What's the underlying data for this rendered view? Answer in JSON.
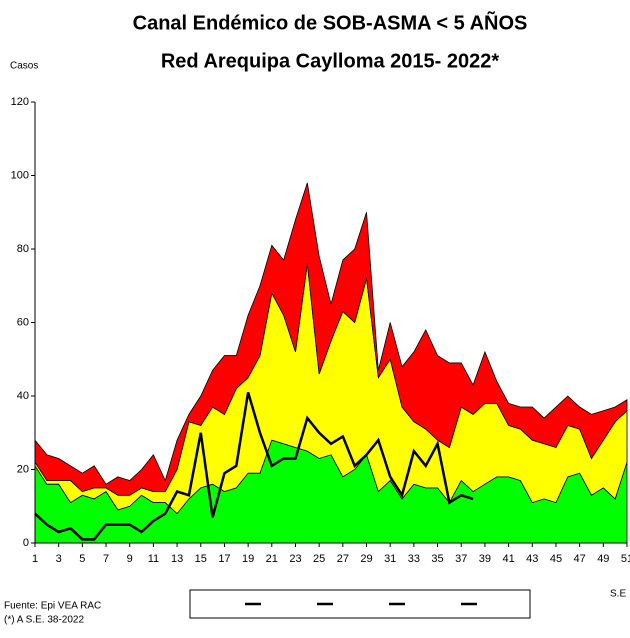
{
  "chart_data": {
    "type": "area",
    "title": [
      "Canal Endémico de SOB-ASMA < 5 AÑOS",
      "Red Arequipa Caylloma 2015- 2022*"
    ],
    "ylabel": "Casos",
    "xlabel": "S.E",
    "notes": [
      "Fuente: Epi VEA RAC",
      "(*) A S.E. 38-2022"
    ],
    "x": [
      1,
      2,
      3,
      4,
      5,
      6,
      7,
      8,
      9,
      10,
      11,
      12,
      13,
      14,
      15,
      16,
      17,
      18,
      19,
      20,
      21,
      22,
      23,
      24,
      25,
      26,
      27,
      28,
      29,
      30,
      31,
      32,
      33,
      34,
      35,
      36,
      37,
      38,
      39,
      40,
      41,
      42,
      43,
      44,
      45,
      46,
      47,
      48,
      49,
      50,
      51
    ],
    "xlim": [
      1,
      51
    ],
    "xticks": [
      1,
      3,
      5,
      7,
      9,
      11,
      13,
      15,
      17,
      19,
      21,
      23,
      25,
      27,
      29,
      31,
      33,
      35,
      37,
      39,
      41,
      43,
      45,
      47,
      49,
      51
    ],
    "ylim": [
      0,
      120
    ],
    "yticks": [
      0,
      20,
      40,
      60,
      80,
      100,
      120
    ],
    "series": [
      {
        "color": "#00ff00",
        "values": [
          21,
          16,
          16,
          11,
          13,
          12,
          14,
          9,
          10,
          13,
          11,
          11,
          8,
          12,
          15,
          16,
          14,
          15,
          19,
          19,
          28,
          27,
          26,
          25,
          23,
          24,
          18,
          20,
          24,
          14,
          17,
          12,
          16,
          15,
          15,
          11,
          17,
          14,
          16,
          18,
          18,
          17,
          11,
          12,
          11,
          18,
          19,
          13,
          15,
          12,
          22
        ]
      },
      {
        "color": "#ffff00",
        "values": [
          1,
          1,
          1,
          6,
          1,
          3,
          1,
          4,
          3,
          2,
          3,
          3,
          12,
          21,
          17,
          21,
          21,
          27,
          26,
          32,
          40,
          35,
          26,
          51,
          23,
          31,
          45,
          40,
          48,
          31,
          33,
          25,
          17,
          16,
          13,
          15,
          20,
          21,
          22,
          20,
          14,
          14,
          17,
          15,
          15,
          14,
          12,
          10,
          13,
          21,
          14
        ]
      },
      {
        "color": "#ff0000",
        "values": [
          6,
          7,
          6,
          4,
          5,
          6,
          1,
          5,
          4,
          5,
          10,
          3,
          8,
          2,
          8,
          10,
          16,
          9,
          17,
          19,
          13,
          15,
          36,
          22,
          32,
          10,
          14,
          20,
          18,
          2,
          10,
          11,
          19,
          27,
          23,
          23,
          12,
          8,
          14,
          6,
          6,
          6,
          9,
          7,
          11,
          8,
          6,
          12,
          8,
          4,
          3
        ]
      }
    ],
    "line": {
      "color": "#000000",
      "values": [
        8,
        5,
        3,
        4,
        1,
        1,
        5,
        5,
        5,
        3,
        6,
        8,
        14,
        13,
        30,
        7,
        19,
        21,
        41,
        30,
        21,
        23,
        23,
        34,
        30,
        27,
        29,
        21,
        24,
        28,
        18,
        13,
        25,
        21,
        27,
        11,
        13,
        12,
        null,
        null,
        null,
        null,
        null,
        null,
        null,
        null,
        null,
        null,
        null,
        null,
        null
      ]
    }
  }
}
